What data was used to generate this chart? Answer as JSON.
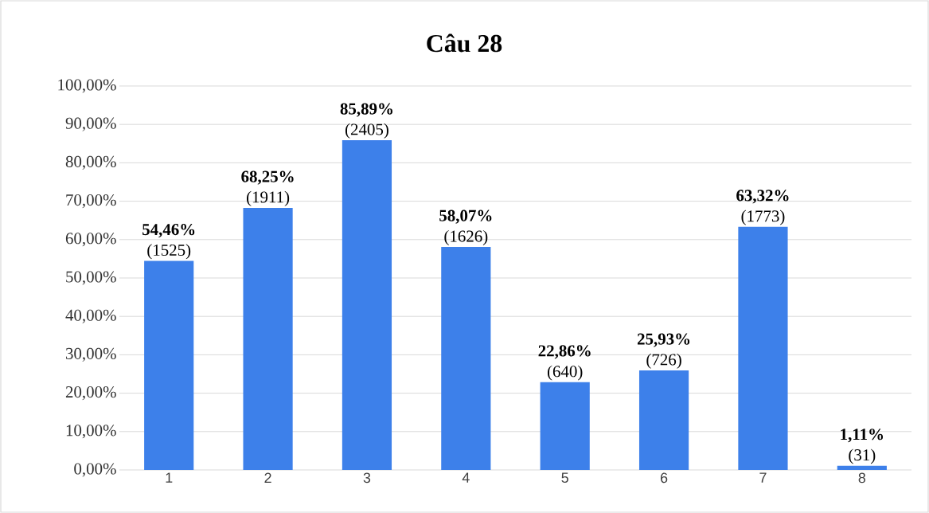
{
  "chart_data": {
    "type": "bar",
    "title": "Câu 28",
    "categories": [
      "1",
      "2",
      "3",
      "4",
      "5",
      "6",
      "7",
      "8"
    ],
    "values": [
      54.46,
      68.25,
      85.89,
      58.07,
      22.86,
      25.93,
      63.32,
      1.11
    ],
    "value_labels": [
      "**54,46%** (1525)",
      "**68,25%** (1911)",
      "**85,89%** (2405)",
      "**58,07%** (1626)",
      "**22,86%** (640)",
      "**25,93%** (726)",
      "**63,32%** (1773)",
      "**1,11%** (31)"
    ],
    "color": "#3d80ea",
    "ylim": [
      0,
      100
    ],
    "yticks": [
      {
        "value": 0,
        "label": "0,00%"
      },
      {
        "value": 10,
        "label": "10,00%"
      },
      {
        "value": 20,
        "label": "20,00%"
      },
      {
        "value": 30,
        "label": "30,00%"
      },
      {
        "value": 40,
        "label": "40,00%"
      },
      {
        "value": 50,
        "label": "50,00%"
      },
      {
        "value": 60,
        "label": "60,00%"
      },
      {
        "value": 70,
        "label": "70,00%"
      },
      {
        "value": 80,
        "label": "80,00%"
      },
      {
        "value": 90,
        "label": "90,00%"
      },
      {
        "value": 100,
        "label": "100,00%"
      }
    ],
    "grid": "y"
  }
}
